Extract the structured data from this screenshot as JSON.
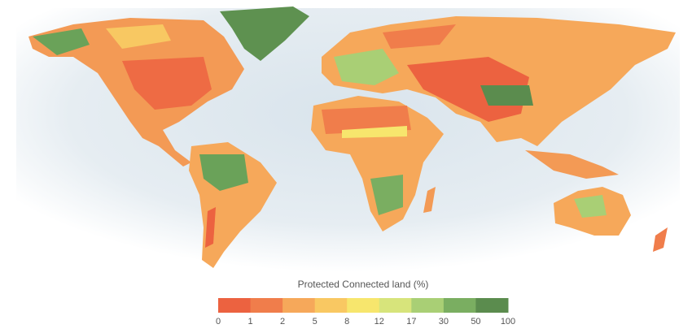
{
  "legend": {
    "title": "Protected Connected land (%)",
    "ticks": [
      0,
      1,
      2,
      5,
      8,
      12,
      17,
      30,
      50,
      100
    ],
    "colors": [
      "#ec6240",
      "#f07d4b",
      "#f6a85a",
      "#f9c862",
      "#f7e66d",
      "#d7e47b",
      "#a9cf75",
      "#7aae61",
      "#5b8c4e"
    ]
  }
}
